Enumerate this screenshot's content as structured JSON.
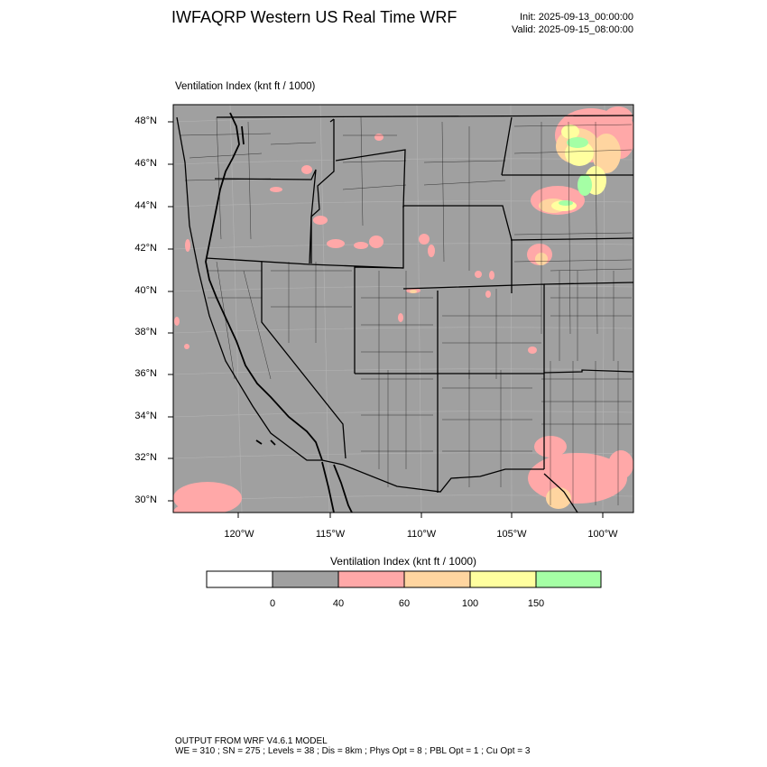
{
  "header": {
    "title": "IWFAQRP Western US Real Time WRF",
    "init": "Init: 2025-09-13_00:00:00",
    "valid": "Valid: 2025-09-15_08:00:00"
  },
  "map": {
    "field_label": "Ventilation Index   (knt ft / 1000)",
    "lat_labels": [
      "48°N",
      "46°N",
      "44°N",
      "42°N",
      "40°N",
      "38°N",
      "36°N",
      "34°N",
      "32°N",
      "30°N"
    ],
    "lon_labels": [
      "120°W",
      "115°W",
      "110°W",
      "105°W",
      "100°W"
    ],
    "colors": {
      "background": "#a0a0a0",
      "pink": "#ffa8a8",
      "orange": "#ffd5a0",
      "yellow": "#ffff9f",
      "green": "#a5ffa5",
      "border": "#000000"
    }
  },
  "legend": {
    "title": "Ventilation Index   (knt ft / 1000)",
    "tick_labels": [
      "0",
      "40",
      "60",
      "100",
      "150"
    ],
    "bins": [
      {
        "color": "#ffffff"
      },
      {
        "color": "#a0a0a0"
      },
      {
        "color": "#ffa8a8"
      },
      {
        "color": "#ffd5a0"
      },
      {
        "color": "#ffff9f"
      },
      {
        "color": "#a5ffa5"
      }
    ]
  },
  "footer": {
    "line1": "OUTPUT FROM WRF V4.6.1 MODEL",
    "line2": "WE = 310 ; SN = 275 ; Levels = 38 ; Dis = 8km ; Phys Opt = 8 ; PBL Opt = 1 ; Cu Opt = 3"
  }
}
